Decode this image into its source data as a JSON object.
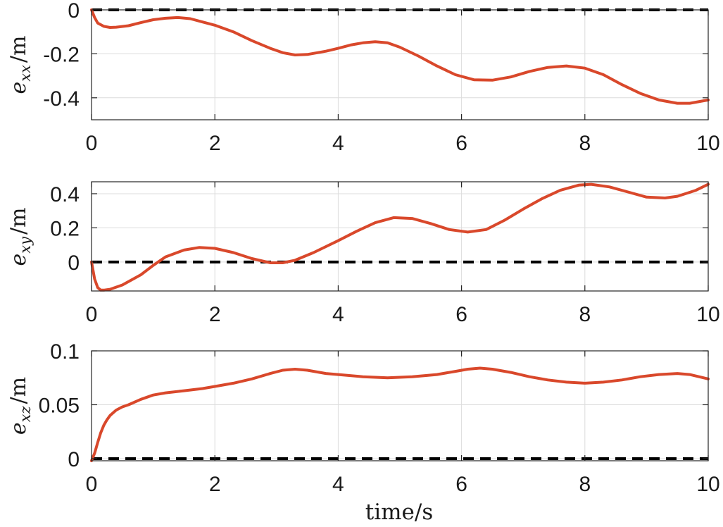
{
  "chart_data": [
    {
      "type": "line",
      "ylabel": "e_xx /m",
      "ylabel_parts": {
        "base": "e",
        "sub": "xx",
        "unit": "/m"
      },
      "xlim": [
        0,
        10
      ],
      "ylim": [
        -0.5,
        0
      ],
      "xticks": [
        0,
        2,
        4,
        6,
        8,
        10
      ],
      "xtick_labels": [
        "0",
        "2",
        "4",
        "6",
        "8",
        "10"
      ],
      "yticks": [
        -0.4,
        -0.2,
        0
      ],
      "ytick_labels": [
        "-0.4",
        "-0.2",
        "0"
      ],
      "grid": true,
      "reference_line": {
        "y": 0,
        "style": "dashed",
        "color": "#000000"
      },
      "series": [
        {
          "color": "#d9482b",
          "x": [
            0,
            0.05,
            0.1,
            0.2,
            0.3,
            0.4,
            0.6,
            0.8,
            1.0,
            1.2,
            1.4,
            1.6,
            1.8,
            2.0,
            2.3,
            2.6,
            2.9,
            3.1,
            3.3,
            3.5,
            3.8,
            4.0,
            4.2,
            4.4,
            4.6,
            4.8,
            5.0,
            5.3,
            5.6,
            5.9,
            6.2,
            6.5,
            6.8,
            7.1,
            7.4,
            7.7,
            8.0,
            8.3,
            8.6,
            8.9,
            9.2,
            9.5,
            9.7,
            10.0
          ],
          "y": [
            0,
            -0.035,
            -0.06,
            -0.075,
            -0.08,
            -0.079,
            -0.072,
            -0.058,
            -0.045,
            -0.038,
            -0.035,
            -0.04,
            -0.055,
            -0.07,
            -0.1,
            -0.14,
            -0.175,
            -0.195,
            -0.205,
            -0.203,
            -0.188,
            -0.175,
            -0.16,
            -0.15,
            -0.145,
            -0.15,
            -0.17,
            -0.21,
            -0.255,
            -0.295,
            -0.318,
            -0.32,
            -0.305,
            -0.28,
            -0.262,
            -0.255,
            -0.265,
            -0.295,
            -0.34,
            -0.38,
            -0.41,
            -0.425,
            -0.425,
            -0.41
          ]
        }
      ]
    },
    {
      "type": "line",
      "ylabel": "e_xy /m",
      "ylabel_parts": {
        "base": "e",
        "sub": "xy",
        "unit": "/m"
      },
      "xlim": [
        0,
        10
      ],
      "ylim": [
        -0.17,
        0.47
      ],
      "xticks": [
        0,
        2,
        4,
        6,
        8,
        10
      ],
      "xtick_labels": [
        "0",
        "2",
        "4",
        "6",
        "8",
        "10"
      ],
      "yticks": [
        0,
        0.2,
        0.4
      ],
      "ytick_labels": [
        "0",
        "0.2",
        "0.4"
      ],
      "grid": true,
      "reference_line": {
        "y": 0,
        "style": "dashed",
        "color": "#000000"
      },
      "series": [
        {
          "color": "#d9482b",
          "x": [
            0,
            0.05,
            0.1,
            0.15,
            0.2,
            0.3,
            0.5,
            0.8,
            1.0,
            1.2,
            1.5,
            1.75,
            2.0,
            2.3,
            2.6,
            2.9,
            3.1,
            3.3,
            3.6,
            4.0,
            4.3,
            4.6,
            4.9,
            5.2,
            5.5,
            5.8,
            6.1,
            6.4,
            6.7,
            7.0,
            7.3,
            7.6,
            7.9,
            8.1,
            8.4,
            8.7,
            9.0,
            9.3,
            9.5,
            9.8,
            10.0
          ],
          "y": [
            0,
            -0.1,
            -0.15,
            -0.165,
            -0.165,
            -0.16,
            -0.135,
            -0.075,
            -0.02,
            0.03,
            0.07,
            0.085,
            0.08,
            0.055,
            0.02,
            -0.005,
            -0.005,
            0.01,
            0.055,
            0.125,
            0.18,
            0.23,
            0.26,
            0.255,
            0.225,
            0.19,
            0.175,
            0.19,
            0.245,
            0.31,
            0.37,
            0.42,
            0.45,
            0.455,
            0.44,
            0.41,
            0.38,
            0.375,
            0.385,
            0.42,
            0.455
          ]
        }
      ]
    },
    {
      "type": "line",
      "ylabel": "e_xz /m",
      "ylabel_parts": {
        "base": "e",
        "sub": "xz",
        "unit": "/m"
      },
      "xlabel": "time/s",
      "xlim": [
        0,
        10
      ],
      "ylim": [
        -0.002,
        0.1
      ],
      "xticks": [
        0,
        2,
        4,
        6,
        8,
        10
      ],
      "xtick_labels": [
        "0",
        "2",
        "4",
        "6",
        "8",
        "10"
      ],
      "yticks": [
        0,
        0.05,
        0.1
      ],
      "ytick_labels": [
        "0",
        "0.05",
        "0.1"
      ],
      "grid": true,
      "reference_line": {
        "y": 0,
        "style": "dashed",
        "color": "#000000"
      },
      "series": [
        {
          "color": "#d9482b",
          "x": [
            0,
            0.05,
            0.1,
            0.15,
            0.2,
            0.25,
            0.3,
            0.4,
            0.5,
            0.6,
            0.8,
            1.0,
            1.2,
            1.5,
            1.8,
            2.0,
            2.3,
            2.6,
            2.9,
            3.1,
            3.3,
            3.5,
            3.8,
            4.0,
            4.4,
            4.8,
            5.2,
            5.6,
            5.9,
            6.1,
            6.3,
            6.5,
            6.8,
            7.1,
            7.4,
            7.7,
            8.0,
            8.3,
            8.6,
            8.9,
            9.2,
            9.5,
            9.7,
            10.0
          ],
          "y": [
            -0.002,
            0.005,
            0.015,
            0.024,
            0.031,
            0.036,
            0.04,
            0.045,
            0.048,
            0.05,
            0.055,
            0.059,
            0.061,
            0.063,
            0.065,
            0.067,
            0.07,
            0.074,
            0.079,
            0.082,
            0.083,
            0.082,
            0.079,
            0.078,
            0.076,
            0.075,
            0.076,
            0.078,
            0.081,
            0.083,
            0.084,
            0.083,
            0.08,
            0.076,
            0.073,
            0.071,
            0.07,
            0.071,
            0.073,
            0.076,
            0.078,
            0.079,
            0.078,
            0.074
          ]
        }
      ]
    }
  ]
}
